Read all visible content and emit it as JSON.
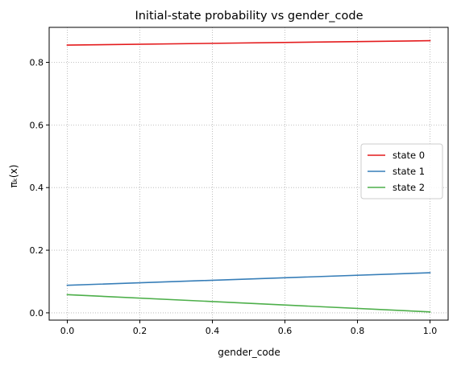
{
  "chart_data": {
    "type": "line",
    "title": "Initial-state probability vs gender_code",
    "xlabel": "gender_code",
    "ylabel": "πₖ(x)",
    "xlim": [
      -0.05,
      1.05
    ],
    "ylim": [
      -0.0233,
      0.9117
    ],
    "xticks": [
      0.0,
      0.2,
      0.4,
      0.6,
      0.8,
      1.0
    ],
    "xtick_labels": [
      "0.0",
      "0.2",
      "0.4",
      "0.6",
      "0.8",
      "1.0"
    ],
    "yticks": [
      0.0,
      0.2,
      0.4,
      0.6,
      0.8
    ],
    "ytick_labels": [
      "0.0",
      "0.2",
      "0.4",
      "0.6",
      "0.8"
    ],
    "grid": true,
    "grid_style": "dotted",
    "legend_position": "center-right",
    "series": [
      {
        "name": "state 0",
        "color": "#e41a1c",
        "x": [
          0.0,
          1.0
        ],
        "y": [
          0.855,
          0.869
        ]
      },
      {
        "name": "state 1",
        "color": "#377eb8",
        "x": [
          0.0,
          1.0
        ],
        "y": [
          0.088,
          0.128
        ]
      },
      {
        "name": "state 2",
        "color": "#4daf4a",
        "x": [
          0.0,
          1.0
        ],
        "y": [
          0.058,
          0.003
        ]
      }
    ]
  }
}
